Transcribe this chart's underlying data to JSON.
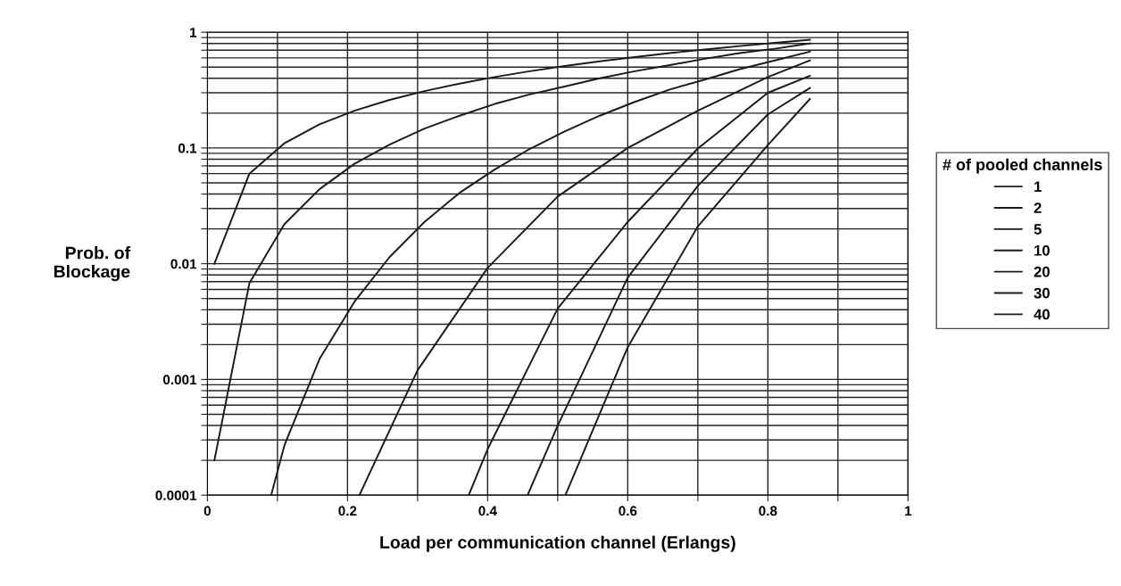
{
  "chart_data": {
    "type": "line",
    "xlabel": "Load per communication channel (Erlangs)",
    "ylabel": "Prob. of\nBlockage",
    "legend_title": "# of pooled channels",
    "log": "y",
    "grid": true,
    "legend": "right",
    "line_style": "solid",
    "xlim": [
      0,
      1
    ],
    "ylim": [
      0.0001,
      1
    ],
    "xticks": [
      0,
      {
        "value": 0.1,
        "label": null
      },
      0.2,
      {
        "value": 0.3,
        "label": null
      },
      0.4,
      {
        "value": 0.5,
        "label": null
      },
      0.6,
      {
        "value": 0.7,
        "label": null
      },
      0.8,
      {
        "value": 0.9,
        "label": null
      },
      1
    ],
    "yticks": [
      0.0001,
      {
        "value": 0.0002,
        "label": null
      },
      {
        "value": 0.0003,
        "label": null
      },
      {
        "value": 0.0004,
        "label": null
      },
      {
        "value": 0.0005,
        "label": null
      },
      {
        "value": 0.0006,
        "label": null
      },
      {
        "value": 0.0007,
        "label": null
      },
      {
        "value": 0.0008,
        "label": null
      },
      {
        "value": 0.0009,
        "label": null
      },
      0.001,
      {
        "value": 0.002,
        "label": null
      },
      {
        "value": 0.003,
        "label": null
      },
      {
        "value": 0.004,
        "label": null
      },
      {
        "value": 0.005,
        "label": null
      },
      {
        "value": 0.006,
        "label": null
      },
      {
        "value": 0.007,
        "label": null
      },
      {
        "value": 0.008,
        "label": null
      },
      {
        "value": 0.009,
        "label": null
      },
      0.01,
      {
        "value": 0.02,
        "label": null
      },
      {
        "value": 0.03,
        "label": null
      },
      {
        "value": 0.04,
        "label": null
      },
      {
        "value": 0.05,
        "label": null
      },
      {
        "value": 0.06,
        "label": null
      },
      {
        "value": 0.07,
        "label": null
      },
      {
        "value": 0.08,
        "label": null
      },
      {
        "value": 0.09,
        "label": null
      },
      0.1,
      {
        "value": 0.2,
        "label": null
      },
      {
        "value": 0.3,
        "label": null
      },
      {
        "value": 0.4,
        "label": null
      },
      {
        "value": 0.5,
        "label": null
      },
      {
        "value": 0.6,
        "label": null
      },
      {
        "value": 0.7,
        "label": null
      },
      {
        "value": 0.8,
        "label": null
      },
      {
        "value": 0.9,
        "label": null
      },
      1
    ],
    "series": [
      {
        "name": "1",
        "color": "#1a1a1a",
        "x": [
          0.01,
          0.06,
          0.11,
          0.16,
          0.21,
          0.26,
          0.31,
          0.36,
          0.41,
          0.46,
          0.51,
          0.56,
          0.61,
          0.66,
          0.71,
          0.76,
          0.81,
          0.86
        ],
        "values": [
          0.01,
          0.06,
          0.11,
          0.16,
          0.21,
          0.26,
          0.31,
          0.36,
          0.41,
          0.46,
          0.51,
          0.56,
          0.61,
          0.66,
          0.71,
          0.76,
          0.81,
          0.86
        ]
      },
      {
        "name": "2",
        "color": "#1a1a1a",
        "x": [
          0.01,
          0.06,
          0.11,
          0.16,
          0.21,
          0.26,
          0.31,
          0.36,
          0.41,
          0.46,
          0.51,
          0.56,
          0.61,
          0.66,
          0.71,
          0.76,
          0.81,
          0.86
        ],
        "values": [
          0.0002,
          0.0068,
          0.022,
          0.044,
          0.073,
          0.107,
          0.147,
          0.19,
          0.24,
          0.29,
          0.34,
          0.4,
          0.46,
          0.52,
          0.59,
          0.66,
          0.72,
          0.8
        ]
      },
      {
        "name": "5",
        "color": "#1a1a1a",
        "x": [
          0.091,
          0.11,
          0.16,
          0.21,
          0.26,
          0.31,
          0.36,
          0.41,
          0.46,
          0.51,
          0.56,
          0.61,
          0.66,
          0.71,
          0.76,
          0.81,
          0.86
        ],
        "values": [
          0.0001,
          0.00027,
          0.0015,
          0.0047,
          0.0114,
          0.023,
          0.041,
          0.065,
          0.098,
          0.139,
          0.19,
          0.25,
          0.32,
          0.39,
          0.48,
          0.57,
          0.68
        ]
      },
      {
        "name": "10",
        "color": "#1a1a1a",
        "x": [
          0.217,
          0.3,
          0.4,
          0.5,
          0.6,
          0.7,
          0.8,
          0.86
        ],
        "values": [
          0.0001,
          0.0012,
          0.0092,
          0.038,
          0.1,
          0.21,
          0.41,
          0.57
        ]
      },
      {
        "name": "20",
        "color": "#1a1a1a",
        "x": [
          0.373,
          0.4,
          0.5,
          0.6,
          0.7,
          0.8,
          0.86
        ],
        "values": [
          0.0001,
          0.00025,
          0.0041,
          0.023,
          0.099,
          0.3,
          0.42
        ]
      },
      {
        "name": "30",
        "color": "#1a1a1a",
        "x": [
          0.457,
          0.5,
          0.6,
          0.7,
          0.8,
          0.86
        ],
        "values": [
          0.0001,
          0.0004,
          0.0076,
          0.047,
          0.195,
          0.33
        ]
      },
      {
        "name": "40",
        "color": "#1a1a1a",
        "x": [
          0.511,
          0.6,
          0.7,
          0.8,
          0.86
        ],
        "values": [
          0.0001,
          0.0019,
          0.021,
          0.106,
          0.265
        ]
      }
    ]
  }
}
